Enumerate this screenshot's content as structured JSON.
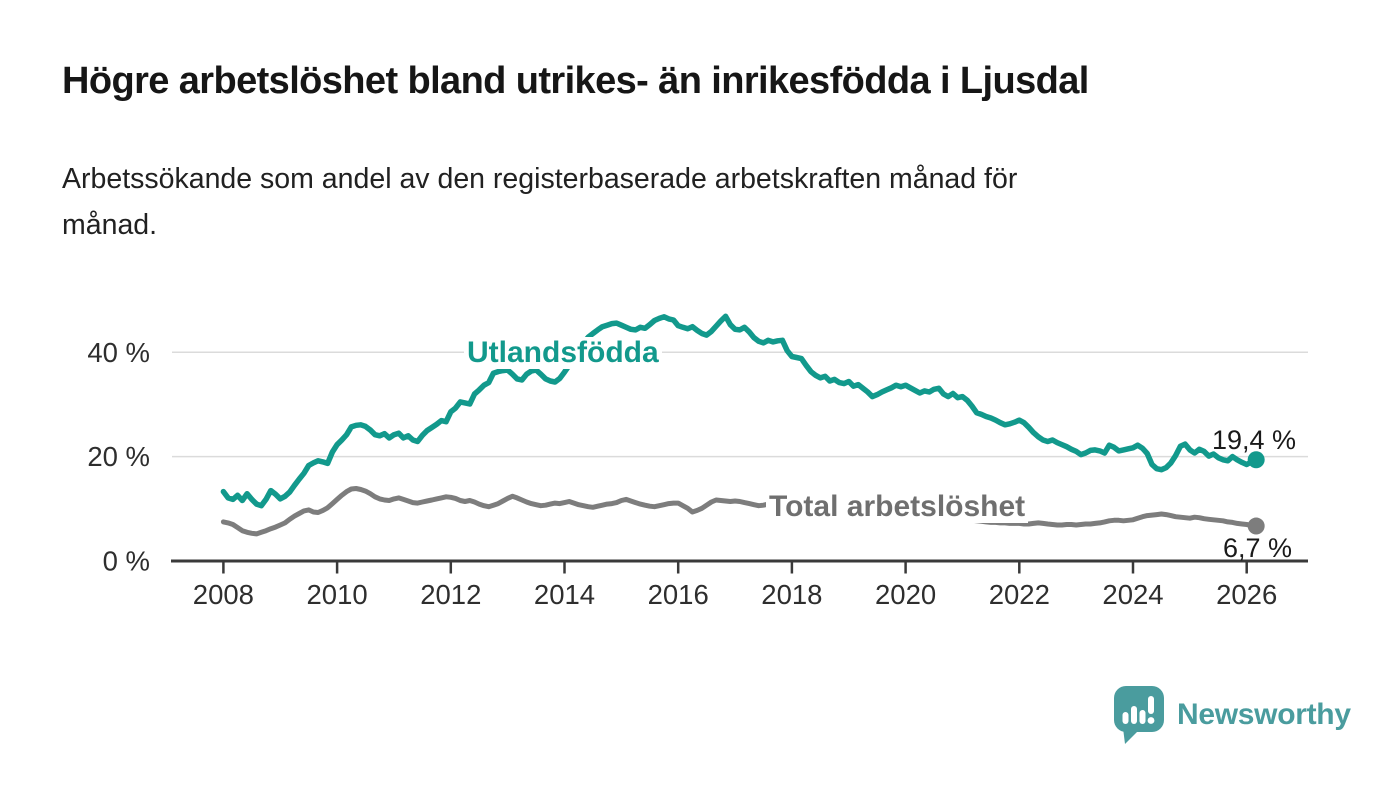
{
  "header": {
    "subtitle_lines": [
      "Arbetssökande som andel av den registerbaserade arbetskraften månad för",
      "månad."
    ]
  },
  "chart_data": {
    "type": "line",
    "title": "Högre arbetslöshet bland utrikes- än inrikesfödda i Ljusdal",
    "subtitle": "Arbetssökande som andel av den registerbaserade arbetskraften månad för månad.",
    "x_unit": "year, monthly observations",
    "start_year": 2008,
    "points_per_year": 12,
    "end_period": "early 2026",
    "x_ticks": [
      2008,
      2010,
      2012,
      2014,
      2016,
      2018,
      2020,
      2022,
      2024,
      2026
    ],
    "y_ticks": [
      {
        "value": 0,
        "label": "0 %"
      },
      {
        "value": 20,
        "label": "20 %"
      },
      {
        "value": 40,
        "label": "40 %"
      }
    ],
    "ylim": [
      0,
      50
    ],
    "grid": "horizontal",
    "legend_position": "inline-labels-on-lines",
    "axis_color": "#3a3a3a",
    "gridline_color": "#dbdbdb",
    "tick_label_color": "#2e2e2e",
    "series": [
      {
        "name": "Utlandsfödda",
        "color": "#12998C",
        "end_label": "19,4 %",
        "end_value": 19.4,
        "values": [
          13.3,
          12.1,
          11.8,
          12.6,
          11.6,
          12.9,
          11.8,
          10.9,
          10.6,
          11.8,
          13.5,
          12.8,
          11.9,
          12.4,
          13.2,
          14.5,
          15.7,
          16.8,
          18.3,
          18.8,
          19.2,
          19.0,
          18.7,
          20.9,
          22.3,
          23.2,
          24.2,
          25.7,
          26.0,
          26.1,
          25.8,
          25.1,
          24.2,
          24.0,
          24.4,
          23.6,
          24.2,
          24.5,
          23.6,
          24.0,
          23.2,
          22.9,
          24.1,
          25.0,
          25.6,
          26.2,
          26.9,
          26.7,
          28.6,
          29.3,
          30.5,
          30.3,
          30.1,
          32.0,
          32.8,
          33.7,
          34.2,
          36.0,
          36.3,
          36.5,
          36.6,
          35.8,
          34.9,
          34.7,
          35.8,
          36.4,
          36.6,
          35.8,
          34.9,
          34.5,
          34.3,
          35.0,
          36.2,
          37.5,
          39.2,
          40.6,
          41.8,
          42.9,
          43.6,
          44.3,
          44.9,
          45.2,
          45.5,
          45.6,
          45.2,
          44.8,
          44.4,
          44.3,
          44.8,
          44.6,
          45.3,
          46.1,
          46.5,
          46.8,
          46.4,
          46.2,
          45.1,
          44.8,
          44.5,
          44.9,
          44.2,
          43.6,
          43.3,
          44.0,
          45.0,
          46.0,
          46.9,
          45.3,
          44.4,
          44.3,
          44.8,
          43.9,
          42.8,
          42.1,
          41.8,
          42.3,
          42.0,
          42.2,
          42.3,
          40.3,
          39.2,
          39.0,
          38.8,
          37.5,
          36.3,
          35.6,
          35.1,
          35.4,
          34.5,
          34.8,
          34.2,
          34.0,
          34.4,
          33.5,
          33.8,
          33.1,
          32.4,
          31.5,
          31.9,
          32.4,
          32.8,
          33.2,
          33.7,
          33.4,
          33.7,
          33.2,
          32.7,
          32.2,
          32.6,
          32.4,
          32.9,
          33.1,
          32.0,
          31.5,
          32.1,
          31.3,
          31.5,
          30.8,
          29.7,
          28.4,
          28.1,
          27.7,
          27.4,
          27.0,
          26.5,
          26.1,
          26.3,
          26.6,
          27.0,
          26.5,
          25.6,
          24.6,
          23.8,
          23.2,
          22.9,
          23.2,
          22.7,
          22.3,
          21.9,
          21.4,
          21.0,
          20.4,
          20.7,
          21.2,
          21.3,
          21.1,
          20.7,
          22.2,
          21.8,
          21.1,
          21.3,
          21.5,
          21.7,
          22.2,
          21.6,
          20.6,
          18.5,
          17.7,
          17.5,
          17.9,
          18.8,
          20.2,
          22.0,
          22.4,
          21.3,
          20.7,
          21.4,
          21.0,
          20.1,
          20.5,
          19.8,
          19.4,
          19.2,
          20.0,
          19.4,
          18.9,
          18.5,
          19.0,
          19.4
        ]
      },
      {
        "name": "Total arbetslöshet",
        "color": "#7D7D7D",
        "label_color": "#6F6F6F",
        "end_label": "6,7 %",
        "end_value": 6.7,
        "values": [
          7.5,
          7.3,
          7.0,
          6.4,
          5.8,
          5.5,
          5.3,
          5.2,
          5.5,
          5.8,
          6.2,
          6.5,
          6.9,
          7.3,
          8.0,
          8.6,
          9.1,
          9.6,
          9.8,
          9.4,
          9.3,
          9.7,
          10.2,
          11.0,
          11.8,
          12.6,
          13.3,
          13.8,
          13.9,
          13.7,
          13.4,
          12.9,
          12.3,
          11.9,
          11.7,
          11.6,
          11.9,
          12.1,
          11.8,
          11.5,
          11.2,
          11.1,
          11.3,
          11.5,
          11.7,
          11.9,
          12.1,
          12.3,
          12.2,
          12.0,
          11.6,
          11.4,
          11.6,
          11.3,
          10.9,
          10.6,
          10.4,
          10.7,
          11.0,
          11.5,
          12.0,
          12.4,
          12.1,
          11.7,
          11.3,
          11.0,
          10.8,
          10.6,
          10.7,
          10.9,
          11.1,
          11.0,
          11.2,
          11.4,
          11.1,
          10.8,
          10.6,
          10.4,
          10.3,
          10.5,
          10.7,
          10.9,
          11.0,
          11.2,
          11.6,
          11.8,
          11.5,
          11.2,
          10.9,
          10.7,
          10.5,
          10.4,
          10.6,
          10.8,
          11.0,
          11.1,
          11.1,
          10.6,
          10.1,
          9.4,
          9.7,
          10.1,
          10.7,
          11.3,
          11.7,
          11.6,
          11.5,
          11.4,
          11.5,
          11.4,
          11.2,
          11.0,
          10.8,
          10.6,
          10.7,
          10.9,
          10.8,
          10.7,
          10.6,
          10.5,
          10.4,
          10.3,
          10.1,
          9.9,
          9.7,
          9.5,
          9.4,
          9.3,
          9.2,
          9.1,
          9.0,
          9.0,
          9.0,
          8.9,
          8.8,
          8.7,
          8.6,
          8.5,
          8.5,
          8.4,
          8.4,
          8.3,
          8.3,
          8.3,
          8.4,
          8.5,
          8.7,
          8.9,
          9.0,
          9.0,
          8.9,
          8.8,
          8.6,
          8.4,
          8.2,
          8.1,
          8.0,
          7.9,
          7.8,
          7.7,
          7.6,
          7.5,
          7.4,
          7.4,
          7.3,
          7.3,
          7.2,
          7.2,
          7.2,
          7.1,
          7.1,
          7.2,
          7.3,
          7.2,
          7.1,
          7.0,
          6.9,
          6.9,
          7.0,
          7.0,
          6.9,
          7.0,
          7.1,
          7.1,
          7.2,
          7.3,
          7.5,
          7.7,
          7.8,
          7.8,
          7.7,
          7.8,
          7.9,
          8.2,
          8.5,
          8.7,
          8.8,
          8.9,
          9.0,
          8.9,
          8.7,
          8.5,
          8.4,
          8.3,
          8.2,
          8.4,
          8.3,
          8.1,
          8.0,
          7.9,
          7.8,
          7.7,
          7.5,
          7.4,
          7.2,
          7.1,
          7.0,
          6.8,
          6.7
        ]
      }
    ]
  },
  "branding": {
    "name": "Newsworthy",
    "logo_icon": "newsworthy-speech-bubble-bar-chart-icon",
    "color": "#4A9C9E"
  }
}
